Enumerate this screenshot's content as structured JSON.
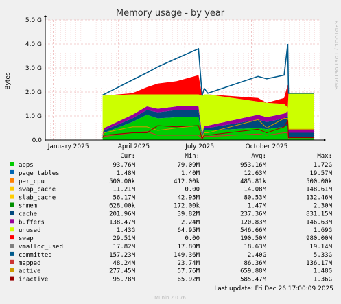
{
  "chart_data": {
    "type": "area",
    "title": "Memory usage - by year",
    "ylabel": "Bytes",
    "side_label": "RRDTOOL / TOBI OETIKER",
    "yticks": [
      "0.0",
      "1.0 G",
      "2.0 G",
      "3.0 G",
      "4.0 G",
      "5.0 G"
    ],
    "ylim": [
      0,
      5000000000
    ],
    "xticks": [
      {
        "label": "January 2025",
        "date": "2025-01-01"
      },
      {
        "label": "April 2025",
        "date": "2025-04-01"
      },
      {
        "label": "July 2025",
        "date": "2025-07-01"
      },
      {
        "label": "October 2025",
        "date": "2025-10-01"
      }
    ],
    "xlim": [
      "2024-12-21",
      "2026-01-03"
    ],
    "grid": true,
    "legend_headers": [
      "Cur:",
      "Min:",
      "Avg:",
      "Max:"
    ],
    "stack_order": [
      "apps",
      "page_tables",
      "per_cpu",
      "swap_cache",
      "slab_cache",
      "shmem",
      "cache",
      "buffers",
      "unused",
      "swap"
    ],
    "breakpoints": [
      {
        "date": "2025-03-10",
        "apps": 0.15,
        "cache": 0.05,
        "buffers": 0.05,
        "unused": 1.6,
        "swap": 0.0,
        "committed": 1.88,
        "mapped": 0.1,
        "active": 0.2,
        "inactive": 0.1
      },
      {
        "date": "2025-03-12",
        "apps": 0.3,
        "cache": 0.1,
        "buffers": 0.1,
        "unused": 1.35,
        "swap": 0.0,
        "committed": 1.9,
        "mapped": 0.15,
        "active": 0.3,
        "inactive": 0.2
      },
      {
        "date": "2025-04-20",
        "apps": 0.75,
        "cache": 0.15,
        "buffers": 0.15,
        "unused": 0.85,
        "swap": 0.05,
        "committed": 2.5,
        "mapped": 0.3,
        "active": 0.55,
        "inactive": 0.3
      },
      {
        "date": "2025-05-10",
        "apps": 1.05,
        "cache": 0.2,
        "buffers": 0.15,
        "unused": 0.5,
        "swap": 0.3,
        "committed": 2.8,
        "mapped": 0.35,
        "active": 0.55,
        "inactive": 0.3
      },
      {
        "date": "2025-05-25",
        "apps": 0.9,
        "cache": 0.25,
        "buffers": 0.15,
        "unused": 0.6,
        "swap": 0.45,
        "committed": 3.05,
        "mapped": 0.2,
        "active": 0.4,
        "inactive": 0.6
      },
      {
        "date": "2025-06-20",
        "apps": 0.95,
        "cache": 0.3,
        "buffers": 0.15,
        "unused": 0.5,
        "swap": 0.55,
        "committed": 3.4,
        "mapped": 0.2,
        "active": 0.5,
        "inactive": 0.55
      },
      {
        "date": "2025-07-20",
        "apps": 0.95,
        "cache": 0.3,
        "buffers": 0.15,
        "unused": 0.5,
        "swap": 0.8,
        "committed": 3.8,
        "mapped": 0.2,
        "active": 0.6,
        "inactive": 0.6
      },
      {
        "date": "2025-07-25",
        "apps": 0.15,
        "cache": 0.05,
        "buffers": 0.05,
        "unused": 1.6,
        "swap": 0.0,
        "committed": 1.85,
        "mapped": 0.05,
        "active": 0.1,
        "inactive": 0.05
      },
      {
        "date": "2025-07-28",
        "apps": 0.4,
        "cache": 0.1,
        "buffers": 0.1,
        "unused": 1.3,
        "swap": 0.0,
        "committed": 2.15,
        "mapped": 0.15,
        "active": 0.3,
        "inactive": 0.2
      },
      {
        "date": "2025-08-02",
        "apps": 0.4,
        "cache": 0.1,
        "buffers": 0.1,
        "unused": 1.3,
        "swap": 0.0,
        "committed": 1.95,
        "mapped": 0.15,
        "active": 0.3,
        "inactive": 0.2
      },
      {
        "date": "2025-10-10",
        "apps": 0.5,
        "cache": 0.35,
        "buffers": 0.2,
        "unused": 0.55,
        "swap": 0.15,
        "committed": 2.65,
        "mapped": 0.25,
        "active": 0.85,
        "inactive": 0.45
      },
      {
        "date": "2025-10-22",
        "apps": 0.45,
        "cache": 0.3,
        "buffers": 0.2,
        "unused": 0.6,
        "swap": 0.0,
        "committed": 2.55,
        "mapped": 0.2,
        "active": 0.5,
        "inactive": 0.3
      },
      {
        "date": "2025-11-15",
        "apps": 0.55,
        "cache": 0.35,
        "buffers": 0.2,
        "unused": 0.4,
        "swap": 0.25,
        "committed": 2.7,
        "mapped": 0.3,
        "active": 0.9,
        "inactive": 0.55
      },
      {
        "date": "2025-11-20",
        "apps": 0.6,
        "cache": 0.4,
        "buffers": 0.2,
        "unused": 0.15,
        "swap": 0.95,
        "committed": 4.0,
        "mapped": 0.3,
        "active": 0.9,
        "inactive": 0.8
      },
      {
        "date": "2025-11-21",
        "apps": 0.1,
        "cache": 0.2,
        "buffers": 0.15,
        "unused": 1.5,
        "swap": 0.0,
        "committed": 1.95,
        "mapped": 0.05,
        "active": 0.45,
        "inactive": 0.1
      },
      {
        "date": "2025-12-26",
        "apps": 0.1,
        "cache": 0.2,
        "buffers": 0.15,
        "unused": 1.5,
        "swap": 0.0,
        "committed": 1.95,
        "mapped": 0.05,
        "active": 0.45,
        "inactive": 0.1
      }
    ],
    "series": [
      {
        "name": "apps",
        "color": "#00cc00",
        "cur": "93.76M",
        "min": "79.09M",
        "avg": "953.16M",
        "max": "1.72G"
      },
      {
        "name": "page_tables",
        "color": "#0066b3",
        "cur": "1.48M",
        "min": "1.40M",
        "avg": "12.63M",
        "max": "19.57M"
      },
      {
        "name": "per_cpu",
        "color": "#ff8000",
        "cur": "500.00k",
        "min": "412.00k",
        "avg": "485.81k",
        "max": "500.00k"
      },
      {
        "name": "swap_cache",
        "color": "#ffcc00",
        "cur": "11.21M",
        "min": "0.00",
        "avg": "14.08M",
        "max": "148.61M"
      },
      {
        "name": "slab_cache",
        "color": "#ffcc00",
        "cur": "56.17M",
        "min": "42.95M",
        "avg": "80.53M",
        "max": "132.46M"
      },
      {
        "name": "shmem",
        "color": "#008f00",
        "cur": "628.00k",
        "min": "172.00k",
        "avg": "1.47M",
        "max": "2.30M"
      },
      {
        "name": "cache",
        "color": "#00487d",
        "cur": "201.96M",
        "min": "39.82M",
        "avg": "237.36M",
        "max": "831.15M"
      },
      {
        "name": "buffers",
        "color": "#990099",
        "cur": "138.47M",
        "min": "2.24M",
        "avg": "120.83M",
        "max": "146.63M"
      },
      {
        "name": "unused",
        "color": "#ccff00",
        "cur": "1.43G",
        "min": "64.95M",
        "avg": "546.66M",
        "max": "1.69G"
      },
      {
        "name": "swap",
        "color": "#ff0000",
        "cur": "29.51M",
        "min": "0.00",
        "avg": "190.50M",
        "max": "980.00M"
      },
      {
        "name": "vmalloc_used",
        "color": "#808080",
        "cur": "17.82M",
        "min": "17.80M",
        "avg": "18.63M",
        "max": "19.14M"
      },
      {
        "name": "committed",
        "color": "#005a8c",
        "cur": "157.23M",
        "min": "149.36M",
        "avg": "2.40G",
        "max": "5.33G"
      },
      {
        "name": "mapped",
        "color": "#cc3333",
        "cur": "48.24M",
        "min": "23.74M",
        "avg": "86.36M",
        "max": "136.17M"
      },
      {
        "name": "active",
        "color": "#cc9900",
        "cur": "277.45M",
        "min": "57.76M",
        "avg": "659.88M",
        "max": "1.48G"
      },
      {
        "name": "inactive",
        "color": "#990000",
        "cur": "95.78M",
        "min": "65.92M",
        "avg": "585.47M",
        "max": "1.36G"
      }
    ],
    "last_update": "Last update:  Fri Dec 26 17:00:09 2025",
    "generator": "Munin 2.0.76"
  }
}
